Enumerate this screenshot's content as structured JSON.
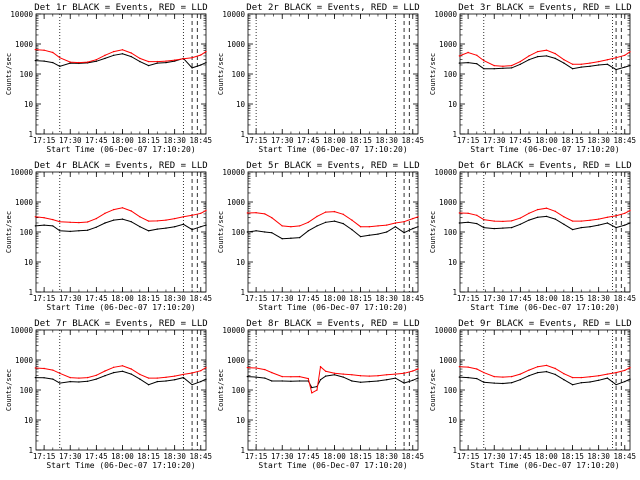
{
  "figure": {
    "xlabel": "Start Time (06-Dec-07 17:10:20)",
    "ylabel": "Counts/sec",
    "x_tick_labels": [
      "17:15",
      "17:30",
      "17:45",
      "18:00",
      "18:15",
      "18:30",
      "18:45"
    ],
    "y_tick_labels": [
      "1",
      "10",
      "100",
      "1000",
      "10000"
    ],
    "colors": {
      "events": "#000000",
      "lld": "#ff0000",
      "background": "#ffffff"
    }
  },
  "chart_data": [
    {
      "type": "line",
      "title": "Det 1r BLACK = Events, RED = LLD",
      "xlabel": "Start Time (06-Dec-07 17:10:20)",
      "ylabel": "Counts/sec",
      "y_scale": "log",
      "ylim": [
        1,
        10000
      ],
      "x_range": [
        "17:10:20",
        "18:48"
      ],
      "x": [
        "17:10",
        "17:15",
        "17:20",
        "17:24",
        "17:30",
        "17:35",
        "17:40",
        "17:45",
        "17:50",
        "17:55",
        "18:00",
        "18:05",
        "18:10",
        "18:15",
        "18:20",
        "18:25",
        "18:30",
        "18:35",
        "18:40",
        "18:45",
        "18:48"
      ],
      "series": [
        {
          "name": "Events",
          "values": [
            280,
            270,
            240,
            180,
            230,
            225,
            235,
            265,
            330,
            420,
            470,
            380,
            260,
            190,
            230,
            240,
            270,
            330,
            160,
            200,
            240
          ]
        },
        {
          "name": "LLD",
          "values": [
            650,
            620,
            520,
            350,
            250,
            240,
            250,
            300,
            420,
            560,
            640,
            500,
            330,
            260,
            260,
            270,
            290,
            320,
            350,
            430,
            560
          ]
        }
      ],
      "vertical_dotted_lines": [
        "17:24",
        "18:35"
      ],
      "vertical_dashed_lines": [
        "18:40",
        "18:43"
      ]
    },
    {
      "type": "line",
      "title": "Det 2r BLACK = Events, RED = LLD",
      "xlabel": "Start Time (06-Dec-07 17:10:20)",
      "ylabel": "Counts/sec",
      "y_scale": "log",
      "ylim": [
        1,
        10000
      ],
      "x_range": [
        "17:10:20",
        "18:48"
      ],
      "series": [],
      "vertical_dotted_lines": [
        "17:15",
        "18:35"
      ],
      "vertical_dashed_lines": [
        "18:40",
        "18:43"
      ]
    },
    {
      "type": "line",
      "title": "Det 3r BLACK = Events, RED = LLD",
      "xlabel": "Start Time (06-Dec-07 17:10:20)",
      "ylabel": "Counts/sec",
      "y_scale": "log",
      "ylim": [
        1,
        10000
      ],
      "x_range": [
        "17:10:20",
        "18:48"
      ],
      "x": [
        "17:10",
        "17:15",
        "17:20",
        "17:24",
        "17:30",
        "17:35",
        "17:40",
        "17:45",
        "17:50",
        "17:55",
        "18:00",
        "18:05",
        "18:10",
        "18:15",
        "18:20",
        "18:25",
        "18:30",
        "18:35",
        "18:40",
        "18:45",
        "18:48"
      ],
      "series": [
        {
          "name": "Events",
          "values": [
            230,
            240,
            220,
            150,
            150,
            155,
            160,
            210,
            300,
            380,
            400,
            330,
            230,
            150,
            170,
            180,
            200,
            210,
            140,
            170,
            190
          ]
        },
        {
          "name": "LLD",
          "values": [
            400,
            520,
            420,
            280,
            190,
            180,
            190,
            260,
            400,
            560,
            620,
            480,
            300,
            210,
            210,
            230,
            260,
            300,
            350,
            420,
            550
          ]
        }
      ],
      "vertical_dotted_lines": [
        "17:24",
        "18:38"
      ],
      "vertical_dashed_lines": [
        "18:40",
        "18:43"
      ]
    },
    {
      "type": "line",
      "title": "Det 4r BLACK = Events, RED = LLD",
      "xlabel": "Start Time (06-Dec-07 17:10:20)",
      "ylabel": "Counts/sec",
      "y_scale": "log",
      "ylim": [
        1,
        10000
      ],
      "x_range": [
        "17:10:20",
        "18:48"
      ],
      "x": [
        "17:10",
        "17:15",
        "17:20",
        "17:24",
        "17:30",
        "17:35",
        "17:40",
        "17:45",
        "17:50",
        "17:55",
        "18:00",
        "18:05",
        "18:10",
        "18:15",
        "18:20",
        "18:25",
        "18:30",
        "18:35",
        "18:40",
        "18:45",
        "18:48"
      ],
      "series": [
        {
          "name": "Events",
          "values": [
            160,
            170,
            160,
            110,
            105,
            110,
            115,
            145,
            200,
            250,
            270,
            220,
            150,
            110,
            125,
            135,
            150,
            180,
            120,
            150,
            170
          ]
        },
        {
          "name": "LLD",
          "values": [
            320,
            300,
            260,
            220,
            210,
            205,
            215,
            280,
            420,
            560,
            640,
            500,
            320,
            230,
            235,
            250,
            280,
            320,
            360,
            420,
            520
          ]
        }
      ],
      "vertical_dotted_lines": [
        "17:24",
        "18:35"
      ],
      "vertical_dashed_lines": [
        "18:40",
        "18:43"
      ]
    },
    {
      "type": "line",
      "title": "Det 5r BLACK = Events, RED = LLD",
      "xlabel": "Start Time (06-Dec-07 17:10:20)",
      "ylabel": "Counts/sec",
      "y_scale": "log",
      "ylim": [
        1,
        10000
      ],
      "x_range": [
        "17:10:20",
        "18:48"
      ],
      "x": [
        "17:10",
        "17:15",
        "17:20",
        "17:24",
        "17:30",
        "17:35",
        "17:40",
        "17:45",
        "17:50",
        "17:55",
        "18:00",
        "18:05",
        "18:10",
        "18:15",
        "18:20",
        "18:25",
        "18:30",
        "18:35",
        "18:40",
        "18:45",
        "18:48"
      ],
      "series": [
        {
          "name": "Events",
          "values": [
            100,
            110,
            100,
            95,
            60,
            62,
            65,
            110,
            160,
            210,
            230,
            190,
            120,
            70,
            78,
            85,
            100,
            150,
            95,
            130,
            150
          ]
        },
        {
          "name": "LLD",
          "values": [
            430,
            440,
            400,
            300,
            160,
            150,
            160,
            210,
            330,
            460,
            480,
            390,
            250,
            150,
            150,
            160,
            170,
            200,
            220,
            280,
            320
          ]
        }
      ],
      "vertical_dotted_lines": [
        "18:35"
      ],
      "vertical_dashed_lines": [
        "18:40",
        "18:43"
      ]
    },
    {
      "type": "line",
      "title": "Det 6r BLACK = Events, RED = LLD",
      "xlabel": "Start Time (06-Dec-07 17:10:20)",
      "ylabel": "Counts/sec",
      "y_scale": "log",
      "ylim": [
        1,
        10000
      ],
      "x_range": [
        "17:10:20",
        "18:48"
      ],
      "x": [
        "17:10",
        "17:15",
        "17:20",
        "17:24",
        "17:30",
        "17:35",
        "17:40",
        "17:45",
        "17:50",
        "17:55",
        "18:00",
        "18:05",
        "18:10",
        "18:15",
        "18:20",
        "18:25",
        "18:30",
        "18:35",
        "18:40",
        "18:45",
        "18:48"
      ],
      "series": [
        {
          "name": "Events",
          "values": [
            200,
            210,
            190,
            140,
            130,
            135,
            140,
            180,
            250,
            310,
            330,
            270,
            180,
            120,
            140,
            150,
            170,
            200,
            140,
            170,
            200
          ]
        },
        {
          "name": "LLD",
          "values": [
            430,
            420,
            360,
            260,
            230,
            225,
            235,
            290,
            420,
            560,
            620,
            490,
            320,
            230,
            230,
            245,
            270,
            310,
            350,
            420,
            520
          ]
        }
      ],
      "vertical_dotted_lines": [
        "17:24",
        "18:38"
      ],
      "vertical_dashed_lines": [
        "18:40",
        "18:43"
      ]
    },
    {
      "type": "line",
      "title": "Det 7r BLACK = Events, RED = LLD",
      "xlabel": "Start Time (06-Dec-07 17:10:20)",
      "ylabel": "Counts/sec",
      "y_scale": "log",
      "ylim": [
        1,
        10000
      ],
      "x_range": [
        "17:10:20",
        "18:48"
      ],
      "x": [
        "17:10",
        "17:15",
        "17:20",
        "17:24",
        "17:30",
        "17:35",
        "17:40",
        "17:45",
        "17:50",
        "17:55",
        "18:00",
        "18:05",
        "18:10",
        "18:15",
        "18:20",
        "18:25",
        "18:30",
        "18:35",
        "18:40",
        "18:45",
        "18:48"
      ],
      "series": [
        {
          "name": "Events",
          "values": [
            260,
            255,
            230,
            170,
            190,
            185,
            195,
            230,
            300,
            380,
            420,
            340,
            230,
            150,
            190,
            200,
            220,
            260,
            150,
            190,
            230
          ]
        },
        {
          "name": "LLD",
          "values": [
            540,
            520,
            460,
            360,
            260,
            250,
            260,
            310,
            430,
            570,
            640,
            500,
            330,
            250,
            250,
            265,
            290,
            330,
            370,
            440,
            560
          ]
        }
      ],
      "vertical_dotted_lines": [
        "17:24",
        "18:35"
      ],
      "vertical_dashed_lines": [
        "18:40",
        "18:43"
      ]
    },
    {
      "type": "line",
      "title": "Det 8r BLACK = Events, RED = LLD",
      "xlabel": "Start Time (06-Dec-07 17:10:20)",
      "ylabel": "Counts/sec",
      "y_scale": "log",
      "ylim": [
        1,
        10000
      ],
      "x_range": [
        "17:10:20",
        "18:48"
      ],
      "x": [
        "17:10",
        "17:15",
        "17:20",
        "17:24",
        "17:30",
        "17:35",
        "17:40",
        "17:45",
        "17:47",
        "17:50",
        "17:52",
        "17:55",
        "18:00",
        "18:05",
        "18:10",
        "18:15",
        "18:20",
        "18:25",
        "18:30",
        "18:35",
        "18:40",
        "18:45",
        "18:48"
      ],
      "series": [
        {
          "name": "Events",
          "values": [
            280,
            270,
            250,
            200,
            200,
            195,
            200,
            200,
            120,
            130,
            220,
            290,
            320,
            270,
            200,
            180,
            190,
            200,
            220,
            250,
            170,
            210,
            250
          ]
        },
        {
          "name": "LLD",
          "values": [
            560,
            540,
            480,
            380,
            280,
            275,
            280,
            240,
            80,
            100,
            600,
            420,
            360,
            340,
            320,
            300,
            290,
            300,
            320,
            340,
            360,
            430,
            500
          ]
        }
      ],
      "vertical_dotted_lines": [
        "17:15",
        "18:35"
      ],
      "vertical_dashed_lines": [
        "18:40",
        "18:43"
      ]
    },
    {
      "type": "line",
      "title": "Det 9r BLACK = Events, RED = LLD",
      "xlabel": "Start Time (06-Dec-07 17:10:20)",
      "ylabel": "Counts/sec",
      "y_scale": "log",
      "ylim": [
        1,
        10000
      ],
      "x_range": [
        "17:10:20",
        "18:48"
      ],
      "x": [
        "17:10",
        "17:15",
        "17:20",
        "17:24",
        "17:30",
        "17:35",
        "17:40",
        "17:45",
        "17:50",
        "17:55",
        "18:00",
        "18:05",
        "18:10",
        "18:15",
        "18:20",
        "18:25",
        "18:30",
        "18:35",
        "18:40",
        "18:45",
        "18:48"
      ],
      "series": [
        {
          "name": "Events",
          "values": [
            270,
            260,
            240,
            180,
            170,
            165,
            175,
            220,
            300,
            380,
            410,
            330,
            220,
            150,
            175,
            185,
            210,
            250,
            150,
            190,
            230
          ]
        },
        {
          "name": "LLD",
          "values": [
            600,
            580,
            500,
            380,
            280,
            270,
            280,
            340,
            460,
            600,
            660,
            520,
            350,
            260,
            260,
            275,
            300,
            340,
            380,
            450,
            560
          ]
        }
      ],
      "vertical_dotted_lines": [
        "17:24",
        "18:38"
      ],
      "vertical_dashed_lines": [
        "18:40",
        "18:43"
      ]
    }
  ]
}
